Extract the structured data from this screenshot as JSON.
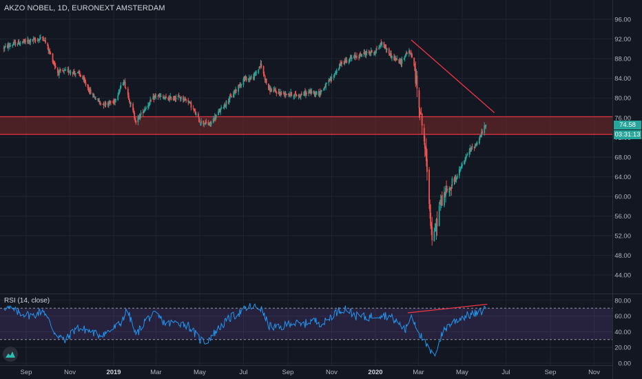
{
  "title": "AKZO NOBEL, 1D, EURONEXT AMSTERDAM",
  "rsi_title": "RSI (14, close)",
  "last_price_label": "74.58",
  "countdown_label": "03:31:13",
  "colors": {
    "background": "#131722",
    "grid": "#1f2430",
    "axis_text": "#b2b5be",
    "up": "#26a69a",
    "down": "#ef5350",
    "zone_fill": "#7a2a2a",
    "zone_line": "#f23645",
    "trendline": "#f23645",
    "rsi_line": "#2196f3",
    "rsi_band": "#7e57c2",
    "rsi_divergence": "#f23645"
  },
  "icons": {
    "logo": "tradingview-logo-icon"
  },
  "chart_data": [
    {
      "type": "candlestick",
      "title": "AKZO NOBEL, 1D, EURONEXT AMSTERDAM",
      "x_ticks": [
        "Sep",
        "Nov",
        "2019",
        "Mar",
        "May",
        "Jul",
        "Sep",
        "Nov",
        "2020",
        "Mar",
        "May",
        "Jul",
        "Sep",
        "Nov"
      ],
      "y_ticks": [
        96.0,
        92.0,
        88.0,
        84.0,
        80.0,
        76.0,
        72.0,
        68.0,
        64.0,
        60.0,
        56.0,
        52.0,
        48.0,
        44.0
      ],
      "ylim": [
        41.5,
        98.0
      ],
      "resistance_zone": [
        72.6,
        76.2
      ],
      "trendline": {
        "from": {
          "date": "2020-02-20",
          "price": 91.8
        },
        "to": {
          "date": "2020-06-15",
          "price": 77.0
        }
      },
      "last_close": 74.58,
      "path_points": [
        [
          "2018-08-01",
          90.2
        ],
        [
          "2018-08-15",
          91.0
        ],
        [
          "2018-09-01",
          91.5
        ],
        [
          "2018-09-15",
          91.8
        ],
        [
          "2018-09-25",
          92.3
        ],
        [
          "2018-10-03",
          89.5
        ],
        [
          "2018-10-15",
          85.2
        ],
        [
          "2018-11-01",
          85.5
        ],
        [
          "2018-11-15",
          84.8
        ],
        [
          "2018-12-01",
          80.8
        ],
        [
          "2018-12-15",
          78.8
        ],
        [
          "2019-01-01",
          79.2
        ],
        [
          "2019-01-15",
          83.5
        ],
        [
          "2019-02-01",
          75.2
        ],
        [
          "2019-02-15",
          78.2
        ],
        [
          "2019-03-01",
          80.5
        ],
        [
          "2019-03-15",
          79.8
        ],
        [
          "2019-04-01",
          80.2
        ],
        [
          "2019-04-15",
          79.5
        ],
        [
          "2019-05-01",
          75.2
        ],
        [
          "2019-05-15",
          74.6
        ],
        [
          "2019-06-01",
          78.0
        ],
        [
          "2019-06-15",
          80.5
        ],
        [
          "2019-07-01",
          83.8
        ],
        [
          "2019-07-15",
          84.2
        ],
        [
          "2019-07-25",
          86.8
        ],
        [
          "2019-08-05",
          81.8
        ],
        [
          "2019-08-20",
          81.0
        ],
        [
          "2019-09-01",
          80.9
        ],
        [
          "2019-09-15",
          80.5
        ],
        [
          "2019-10-01",
          81.2
        ],
        [
          "2019-10-15",
          81.0
        ],
        [
          "2019-11-01",
          84.0
        ],
        [
          "2019-11-15",
          87.2
        ],
        [
          "2019-12-01",
          88.2
        ],
        [
          "2019-12-15",
          89.0
        ],
        [
          "2020-01-01",
          89.5
        ],
        [
          "2020-01-10",
          91.2
        ],
        [
          "2020-01-25",
          88.2
        ],
        [
          "2020-02-05",
          87.2
        ],
        [
          "2020-02-15",
          89.5
        ],
        [
          "2020-02-22",
          88.5
        ],
        [
          "2020-02-28",
          82.0
        ],
        [
          "2020-03-05",
          76.0
        ],
        [
          "2020-03-10",
          70.0
        ],
        [
          "2020-03-14",
          64.0
        ],
        [
          "2020-03-18",
          55.0
        ],
        [
          "2020-03-21",
          50.0
        ],
        [
          "2020-03-25",
          53.5
        ],
        [
          "2020-03-31",
          58.5
        ],
        [
          "2020-04-07",
          60.5
        ],
        [
          "2020-04-15",
          62.0
        ],
        [
          "2020-04-25",
          64.5
        ],
        [
          "2020-05-05",
          67.5
        ],
        [
          "2020-05-12",
          69.5
        ],
        [
          "2020-05-20",
          70.5
        ],
        [
          "2020-05-27",
          72.5
        ],
        [
          "2020-06-03",
          74.58
        ]
      ]
    },
    {
      "type": "line",
      "title": "RSI (14, close)",
      "y_ticks": [
        80.0,
        60.0,
        40.0,
        20.0,
        0.0
      ],
      "ylim": [
        0,
        85
      ],
      "bands": {
        "upper": 70,
        "lower": 30
      },
      "divergence_line": {
        "from": {
          "date": "2020-02-15",
          "value": 64
        },
        "to": {
          "date": "2020-06-05",
          "value": 75
        }
      },
      "path_points": [
        [
          "2018-08-01",
          72
        ],
        [
          "2018-08-20",
          65
        ],
        [
          "2018-09-10",
          60
        ],
        [
          "2018-09-25",
          68
        ],
        [
          "2018-10-10",
          40
        ],
        [
          "2018-10-25",
          28
        ],
        [
          "2018-11-10",
          45
        ],
        [
          "2018-11-25",
          42
        ],
        [
          "2018-12-10",
          36
        ],
        [
          "2018-12-25",
          40
        ],
        [
          "2019-01-10",
          50
        ],
        [
          "2019-01-20",
          68
        ],
        [
          "2019-02-01",
          35
        ],
        [
          "2019-02-15",
          56
        ],
        [
          "2019-03-01",
          62
        ],
        [
          "2019-03-15",
          50
        ],
        [
          "2019-04-01",
          52
        ],
        [
          "2019-04-15",
          48
        ],
        [
          "2019-05-01",
          30
        ],
        [
          "2019-05-10",
          27
        ],
        [
          "2019-05-25",
          42
        ],
        [
          "2019-06-10",
          56
        ],
        [
          "2019-06-25",
          64
        ],
        [
          "2019-07-10",
          72
        ],
        [
          "2019-07-25",
          70
        ],
        [
          "2019-08-05",
          48
        ],
        [
          "2019-08-20",
          44
        ],
        [
          "2019-09-05",
          52
        ],
        [
          "2019-09-20",
          48
        ],
        [
          "2019-10-05",
          55
        ],
        [
          "2019-10-20",
          50
        ],
        [
          "2019-11-05",
          64
        ],
        [
          "2019-11-20",
          70
        ],
        [
          "2019-12-05",
          60
        ],
        [
          "2019-12-20",
          58
        ],
        [
          "2020-01-05",
          62
        ],
        [
          "2020-01-20",
          60
        ],
        [
          "2020-02-01",
          52
        ],
        [
          "2020-02-12",
          42
        ],
        [
          "2020-02-20",
          62
        ],
        [
          "2020-02-28",
          45
        ],
        [
          "2020-03-08",
          28
        ],
        [
          "2020-03-15",
          18
        ],
        [
          "2020-03-22",
          8
        ],
        [
          "2020-03-28",
          22
        ],
        [
          "2020-04-05",
          42
        ],
        [
          "2020-04-15",
          50
        ],
        [
          "2020-04-25",
          56
        ],
        [
          "2020-05-05",
          60
        ],
        [
          "2020-05-15",
          62
        ],
        [
          "2020-05-25",
          64
        ],
        [
          "2020-06-03",
          70
        ]
      ]
    }
  ]
}
